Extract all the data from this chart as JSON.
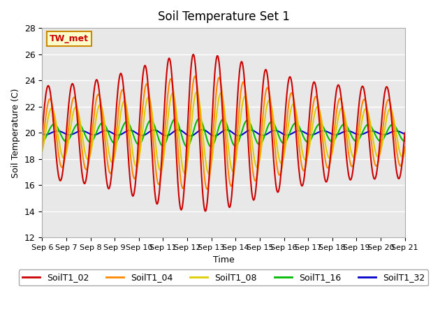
{
  "title": "Soil Temperature Set 1",
  "xlabel": "Time",
  "ylabel": "Soil Temperature (C)",
  "ylim": [
    12,
    28
  ],
  "series_order": [
    "SoilT1_32",
    "SoilT1_16",
    "SoilT1_08",
    "SoilT1_04",
    "SoilT1_02"
  ],
  "series": {
    "SoilT1_02": {
      "color": "#cc0000",
      "lw": 1.5
    },
    "SoilT1_04": {
      "color": "#ff8800",
      "lw": 1.5
    },
    "SoilT1_08": {
      "color": "#ddcc00",
      "lw": 1.5
    },
    "SoilT1_16": {
      "color": "#00bb00",
      "lw": 1.5
    },
    "SoilT1_32": {
      "color": "#0000cc",
      "lw": 1.5
    }
  },
  "xtick_labels": [
    "Sep 6",
    "Sep 7",
    "Sep 8",
    "Sep 9",
    "Sep 10",
    "Sep 11",
    "Sep 12",
    "Sep 13",
    "Sep 14",
    "Sep 15",
    "Sep 16",
    "Sep 17",
    "Sep 18",
    "Sep 19",
    "Sep 20",
    "Sep 21"
  ],
  "ytick_vals": [
    12,
    14,
    16,
    18,
    20,
    22,
    24,
    26,
    28
  ],
  "grid_color": "#ffffff",
  "bg_color": "#e8e8e8",
  "tw_met_label": "TW_met",
  "tw_met_fg": "#cc0000",
  "tw_met_bg": "#ffffcc",
  "tw_met_border": "#cc8800",
  "n_days": 15
}
